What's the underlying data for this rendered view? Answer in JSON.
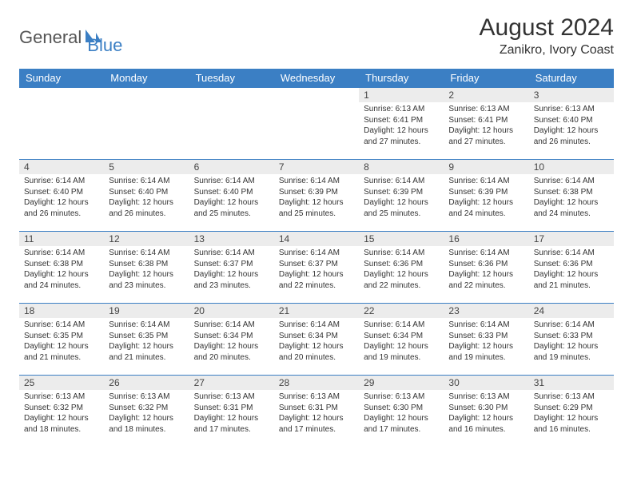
{
  "brand": {
    "general": "General",
    "blue": "Blue"
  },
  "title": "August 2024",
  "location": "Zanikro, Ivory Coast",
  "colors": {
    "header_bg": "#3b7fc4",
    "header_fg": "#ffffff",
    "daynum_bg": "#ececec",
    "border": "#3b7fc4",
    "text": "#333333",
    "logo_blue": "#3b7fc4",
    "logo_gray": "#555555"
  },
  "typography": {
    "title_fontsize": 30,
    "location_fontsize": 16,
    "header_cell_fontsize": 13,
    "daynum_fontsize": 12,
    "body_fontsize": 10
  },
  "weekdays": [
    "Sunday",
    "Monday",
    "Tuesday",
    "Wednesday",
    "Thursday",
    "Friday",
    "Saturday"
  ],
  "weeks": [
    [
      {
        "n": "",
        "sr": "",
        "ss": "",
        "dl": ""
      },
      {
        "n": "",
        "sr": "",
        "ss": "",
        "dl": ""
      },
      {
        "n": "",
        "sr": "",
        "ss": "",
        "dl": ""
      },
      {
        "n": "",
        "sr": "",
        "ss": "",
        "dl": ""
      },
      {
        "n": "1",
        "sr": "Sunrise: 6:13 AM",
        "ss": "Sunset: 6:41 PM",
        "dl": "Daylight: 12 hours and 27 minutes."
      },
      {
        "n": "2",
        "sr": "Sunrise: 6:13 AM",
        "ss": "Sunset: 6:41 PM",
        "dl": "Daylight: 12 hours and 27 minutes."
      },
      {
        "n": "3",
        "sr": "Sunrise: 6:13 AM",
        "ss": "Sunset: 6:40 PM",
        "dl": "Daylight: 12 hours and 26 minutes."
      }
    ],
    [
      {
        "n": "4",
        "sr": "Sunrise: 6:14 AM",
        "ss": "Sunset: 6:40 PM",
        "dl": "Daylight: 12 hours and 26 minutes."
      },
      {
        "n": "5",
        "sr": "Sunrise: 6:14 AM",
        "ss": "Sunset: 6:40 PM",
        "dl": "Daylight: 12 hours and 26 minutes."
      },
      {
        "n": "6",
        "sr": "Sunrise: 6:14 AM",
        "ss": "Sunset: 6:40 PM",
        "dl": "Daylight: 12 hours and 25 minutes."
      },
      {
        "n": "7",
        "sr": "Sunrise: 6:14 AM",
        "ss": "Sunset: 6:39 PM",
        "dl": "Daylight: 12 hours and 25 minutes."
      },
      {
        "n": "8",
        "sr": "Sunrise: 6:14 AM",
        "ss": "Sunset: 6:39 PM",
        "dl": "Daylight: 12 hours and 25 minutes."
      },
      {
        "n": "9",
        "sr": "Sunrise: 6:14 AM",
        "ss": "Sunset: 6:39 PM",
        "dl": "Daylight: 12 hours and 24 minutes."
      },
      {
        "n": "10",
        "sr": "Sunrise: 6:14 AM",
        "ss": "Sunset: 6:38 PM",
        "dl": "Daylight: 12 hours and 24 minutes."
      }
    ],
    [
      {
        "n": "11",
        "sr": "Sunrise: 6:14 AM",
        "ss": "Sunset: 6:38 PM",
        "dl": "Daylight: 12 hours and 24 minutes."
      },
      {
        "n": "12",
        "sr": "Sunrise: 6:14 AM",
        "ss": "Sunset: 6:38 PM",
        "dl": "Daylight: 12 hours and 23 minutes."
      },
      {
        "n": "13",
        "sr": "Sunrise: 6:14 AM",
        "ss": "Sunset: 6:37 PM",
        "dl": "Daylight: 12 hours and 23 minutes."
      },
      {
        "n": "14",
        "sr": "Sunrise: 6:14 AM",
        "ss": "Sunset: 6:37 PM",
        "dl": "Daylight: 12 hours and 22 minutes."
      },
      {
        "n": "15",
        "sr": "Sunrise: 6:14 AM",
        "ss": "Sunset: 6:36 PM",
        "dl": "Daylight: 12 hours and 22 minutes."
      },
      {
        "n": "16",
        "sr": "Sunrise: 6:14 AM",
        "ss": "Sunset: 6:36 PM",
        "dl": "Daylight: 12 hours and 22 minutes."
      },
      {
        "n": "17",
        "sr": "Sunrise: 6:14 AM",
        "ss": "Sunset: 6:36 PM",
        "dl": "Daylight: 12 hours and 21 minutes."
      }
    ],
    [
      {
        "n": "18",
        "sr": "Sunrise: 6:14 AM",
        "ss": "Sunset: 6:35 PM",
        "dl": "Daylight: 12 hours and 21 minutes."
      },
      {
        "n": "19",
        "sr": "Sunrise: 6:14 AM",
        "ss": "Sunset: 6:35 PM",
        "dl": "Daylight: 12 hours and 21 minutes."
      },
      {
        "n": "20",
        "sr": "Sunrise: 6:14 AM",
        "ss": "Sunset: 6:34 PM",
        "dl": "Daylight: 12 hours and 20 minutes."
      },
      {
        "n": "21",
        "sr": "Sunrise: 6:14 AM",
        "ss": "Sunset: 6:34 PM",
        "dl": "Daylight: 12 hours and 20 minutes."
      },
      {
        "n": "22",
        "sr": "Sunrise: 6:14 AM",
        "ss": "Sunset: 6:34 PM",
        "dl": "Daylight: 12 hours and 19 minutes."
      },
      {
        "n": "23",
        "sr": "Sunrise: 6:14 AM",
        "ss": "Sunset: 6:33 PM",
        "dl": "Daylight: 12 hours and 19 minutes."
      },
      {
        "n": "24",
        "sr": "Sunrise: 6:14 AM",
        "ss": "Sunset: 6:33 PM",
        "dl": "Daylight: 12 hours and 19 minutes."
      }
    ],
    [
      {
        "n": "25",
        "sr": "Sunrise: 6:13 AM",
        "ss": "Sunset: 6:32 PM",
        "dl": "Daylight: 12 hours and 18 minutes."
      },
      {
        "n": "26",
        "sr": "Sunrise: 6:13 AM",
        "ss": "Sunset: 6:32 PM",
        "dl": "Daylight: 12 hours and 18 minutes."
      },
      {
        "n": "27",
        "sr": "Sunrise: 6:13 AM",
        "ss": "Sunset: 6:31 PM",
        "dl": "Daylight: 12 hours and 17 minutes."
      },
      {
        "n": "28",
        "sr": "Sunrise: 6:13 AM",
        "ss": "Sunset: 6:31 PM",
        "dl": "Daylight: 12 hours and 17 minutes."
      },
      {
        "n": "29",
        "sr": "Sunrise: 6:13 AM",
        "ss": "Sunset: 6:30 PM",
        "dl": "Daylight: 12 hours and 17 minutes."
      },
      {
        "n": "30",
        "sr": "Sunrise: 6:13 AM",
        "ss": "Sunset: 6:30 PM",
        "dl": "Daylight: 12 hours and 16 minutes."
      },
      {
        "n": "31",
        "sr": "Sunrise: 6:13 AM",
        "ss": "Sunset: 6:29 PM",
        "dl": "Daylight: 12 hours and 16 minutes."
      }
    ]
  ]
}
